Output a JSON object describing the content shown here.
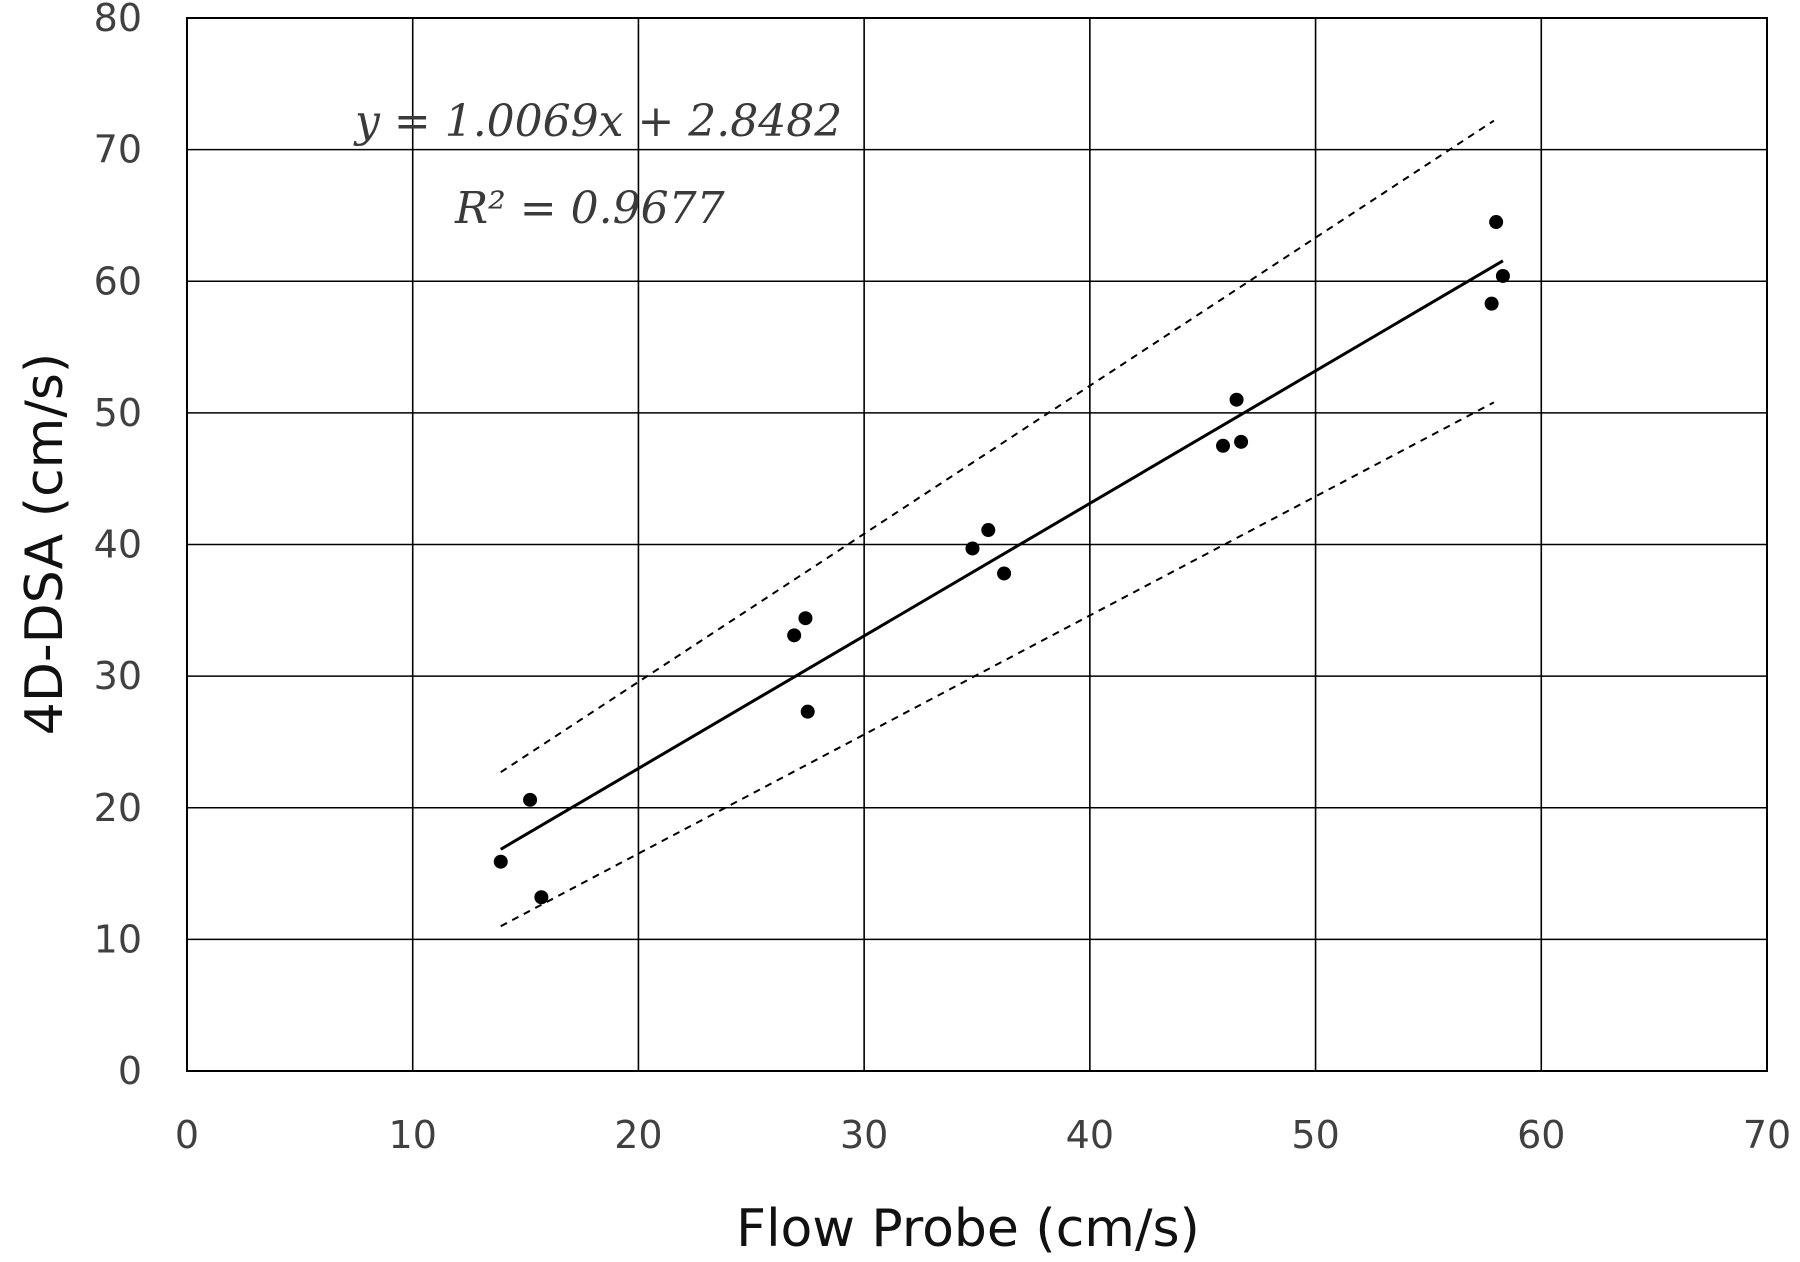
{
  "chart_data": {
    "type": "scatter",
    "xlabel": "Flow Probe (cm/s)",
    "ylabel": "4D-DSA (cm/s)",
    "xlim": [
      0,
      70
    ],
    "ylim": [
      0,
      80
    ],
    "xticks": [
      0,
      10,
      20,
      30,
      40,
      50,
      60,
      70
    ],
    "yticks": [
      0,
      10,
      20,
      30,
      40,
      50,
      60,
      70,
      80
    ],
    "grid": true,
    "points": [
      {
        "x": 13.9,
        "y": 15.9
      },
      {
        "x": 15.2,
        "y": 20.6
      },
      {
        "x": 15.7,
        "y": 13.2
      },
      {
        "x": 26.9,
        "y": 33.1
      },
      {
        "x": 27.4,
        "y": 34.4
      },
      {
        "x": 27.5,
        "y": 27.3
      },
      {
        "x": 34.8,
        "y": 39.7
      },
      {
        "x": 35.5,
        "y": 41.1
      },
      {
        "x": 36.2,
        "y": 37.8
      },
      {
        "x": 45.9,
        "y": 47.5
      },
      {
        "x": 46.5,
        "y": 51.0
      },
      {
        "x": 46.7,
        "y": 47.8
      },
      {
        "x": 57.8,
        "y": 58.3
      },
      {
        "x": 58.0,
        "y": 64.5
      },
      {
        "x": 58.3,
        "y": 60.4
      }
    ],
    "trendline": {
      "slope": 1.0069,
      "intercept": 2.8482,
      "x_range": [
        13.9,
        58.3
      ]
    },
    "confidence_band_upper": {
      "x": [
        13.9,
        57.9
      ],
      "y": [
        22.7,
        72.2
      ]
    },
    "confidence_band_lower": {
      "x": [
        13.9,
        57.9
      ],
      "y": [
        11.0,
        50.8
      ]
    },
    "annotations": {
      "equation": "y = 1.0069x + 2.8482",
      "r_squared": "R² = 0.9677"
    }
  }
}
